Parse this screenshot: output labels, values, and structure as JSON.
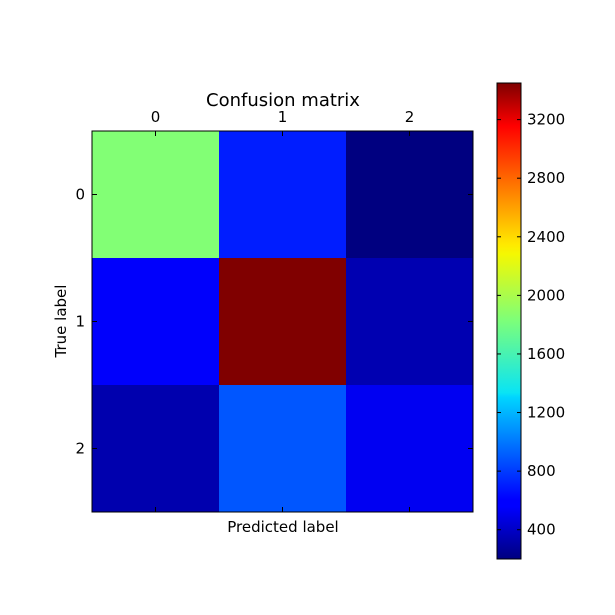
{
  "chart_data": {
    "type": "heatmap",
    "title": "Confusion matrix",
    "xlabel": "Predicted label",
    "ylabel": "True label",
    "x_categories": [
      "0",
      "1",
      "2"
    ],
    "y_categories": [
      "0",
      "1",
      "2"
    ],
    "x_ticks_position": "top",
    "values": [
      [
        1850,
        700,
        200
      ],
      [
        550,
        3450,
        340
      ],
      [
        330,
        880,
        520
      ]
    ],
    "colormap": "jet",
    "colorbar": {
      "range": [
        200,
        3450
      ],
      "ticks": [
        400,
        800,
        1200,
        1600,
        2000,
        2400,
        2800,
        3200
      ],
      "tick_labels": [
        "400",
        "800",
        "1200",
        "1600",
        "2000",
        "2400",
        "2800",
        "3200"
      ],
      "placement": "right"
    },
    "grid": false
  }
}
